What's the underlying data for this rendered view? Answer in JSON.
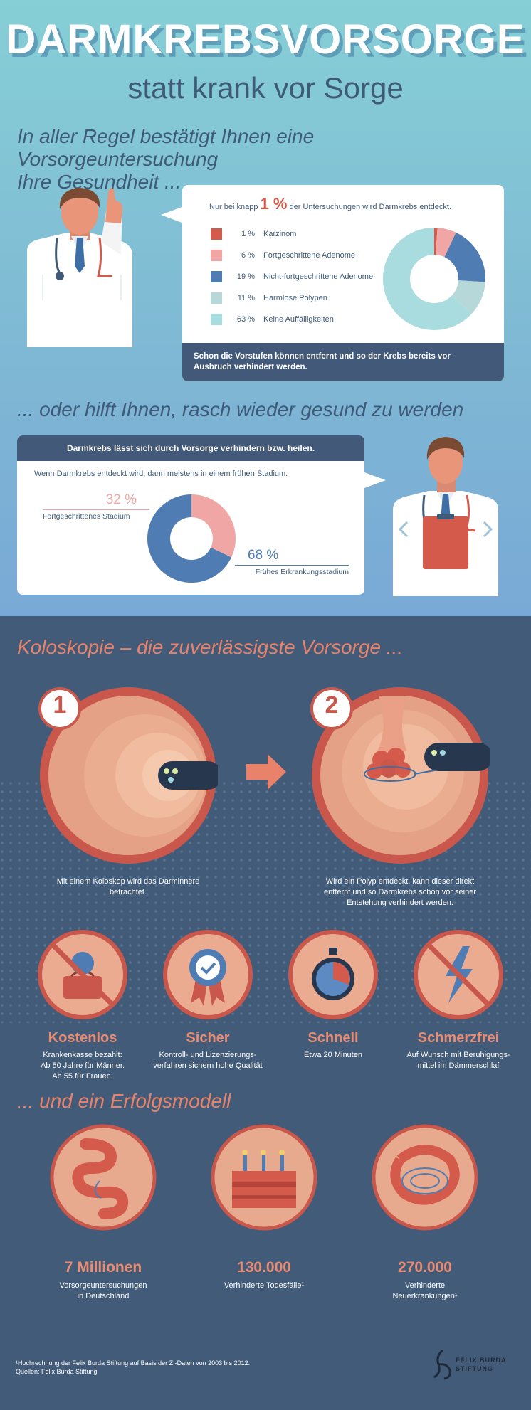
{
  "header": {
    "title": "DARMKREBSVORSORGE",
    "subtitle": "statt krank vor Sorge"
  },
  "section1": {
    "heading_line1": "In aller Regel bestätigt Ihnen eine Vorsorgeuntersuchung",
    "heading_line2": "Ihre Gesundheit ...",
    "intro_before": "Nur bei knapp",
    "intro_value": "1 %",
    "intro_after": "der Untersuchungen wird Darmkrebs entdeckt.",
    "footer_line1": "Schon die Vorstufen können entfernt und so der Krebs bereits vor",
    "footer_line2": "Ausbruch verhindert werden."
  },
  "section2": {
    "heading": "... oder hilft Ihnen, rasch wieder gesund zu werden",
    "card_title": "Darmkrebs lässt sich durch Vorsorge verhindern bzw. heilen.",
    "intro": "Wenn Darmkrebs entdeckt wird, dann meistens in einem frühen Stadium."
  },
  "section3": {
    "heading": "Koloskopie – die zuverlässigste Vorsorge ...",
    "step1_number": "1",
    "step1_line1": "Mit einem Koloskop wird das Darminnere",
    "step1_line2": "betrachtet.",
    "step2_number": "2",
    "step2_line1": "Wird ein Polyp entdeckt, kann dieser direkt",
    "step2_line2": "entfernt und so Darmkrebs schon vor seiner",
    "step2_line3": "Entstehung verhindert werden."
  },
  "features": [
    {
      "title": "Kostenlos",
      "line1": "Krankenkasse bezahlt:",
      "line2": "Ab 50 Jahre für Männer.",
      "line3": "Ab 55 für Frauen."
    },
    {
      "title": "Sicher",
      "line1": "Kontroll- und Lizenzierungs-",
      "line2": "verfahren sichern hohe Qualität",
      "line3": ""
    },
    {
      "title": "Schnell",
      "line1": "Etwa 20 Minuten",
      "line2": "",
      "line3": ""
    },
    {
      "title": "Schmerzfrei",
      "line1": "Auf Wunsch mit Beruhigungs-",
      "line2": "mittel im Dämmerschlaf",
      "line3": ""
    }
  ],
  "section4": {
    "heading": "... und ein Erfolgsmodell"
  },
  "stats": [
    {
      "value": "7 Millionen",
      "line1": "Vorsorgeuntersuchungen",
      "line2": "in Deutschland"
    },
    {
      "value": "130.000",
      "line1": "Verhinderte Todesfälle¹",
      "line2": ""
    },
    {
      "value": "270.000",
      "line1": "Verhinderte",
      "line2": "Neuerkrankungen¹"
    }
  ],
  "footer": {
    "note_line1": "¹Hochrechnung der Felix Burda Stiftung auf Basis der ZI-Daten von 2003 bis 2012.",
    "note_line2": "Quellen: Felix Burda Stiftung",
    "logo_line1": "FELIX BURDA",
    "logo_line2": "STIFTUNG"
  },
  "colors": {
    "coral": "#e8826a",
    "navy": "#42597a",
    "red": "#d45a4c",
    "pink": "#f0a6a4",
    "blue": "#4f7db3",
    "light_teal": "#b7d8d8",
    "pale_teal": "#a9dcde"
  },
  "chart_data": [
    {
      "type": "pie",
      "title": "",
      "categories": [
        "Karzinom",
        "Fortgeschrittene Adenome",
        "Nicht-fortgeschrittene Adenome",
        "Harmlose Polypen",
        "Keine Auffälligkeiten"
      ],
      "values": [
        1,
        6,
        19,
        11,
        63
      ],
      "labels": [
        "1 %",
        "6 %",
        "19 %",
        "11 %",
        "63 %"
      ],
      "colors": [
        "#d45a4c",
        "#f0a6a4",
        "#4f7db3",
        "#b7d8d8",
        "#a9dcde"
      ],
      "donut": true
    },
    {
      "type": "pie",
      "title": "",
      "categories": [
        "Fortgeschrittenes Stadium",
        "Frühes Erkrankungsstadium"
      ],
      "values": [
        32,
        68
      ],
      "labels": [
        "32 %",
        "68 %"
      ],
      "colors": [
        "#f0a6a4",
        "#4f7db3"
      ],
      "donut": true
    }
  ]
}
